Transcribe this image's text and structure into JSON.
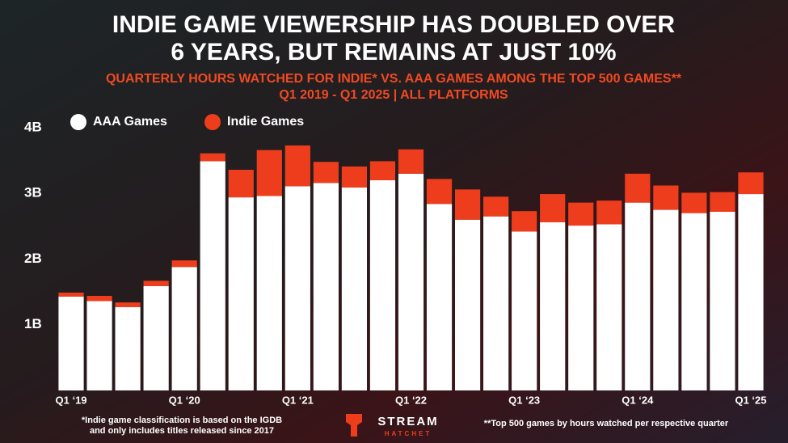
{
  "chart_data": {
    "type": "stacked-bar",
    "title": [
      "INDIE GAME VIEWERSHIP HAS DOUBLED OVER",
      "6 YEARS, BUT REMAINS AT JUST 10%"
    ],
    "subtitle": [
      "QUARTERLY HOURS WATCHED FOR INDIE* VS. AAA GAMES AMONG THE TOP 500 GAMES**",
      "Q1 2019 - Q1 2025 | ALL PLATFORMS"
    ],
    "categories": [
      "Q1 ‘19",
      null,
      null,
      null,
      "Q1 ‘20",
      null,
      null,
      null,
      "Q1 ‘21",
      null,
      null,
      null,
      "Q1 ‘22",
      null,
      null,
      null,
      "Q1 ‘23",
      null,
      null,
      null,
      "Q1 ‘24",
      null,
      null,
      null,
      "Q1 ‘25"
    ],
    "series": [
      {
        "name": "AAA Games",
        "color": "#ffffff",
        "values": [
          1.43,
          1.36,
          1.27,
          1.59,
          1.88,
          3.49,
          2.94,
          2.96,
          3.11,
          3.16,
          3.09,
          3.2,
          3.3,
          2.84,
          2.6,
          2.65,
          2.42,
          2.56,
          2.51,
          2.53,
          2.86,
          2.75,
          2.7,
          2.72,
          2.99
        ]
      },
      {
        "name": "Indie Games",
        "color": "#ee3d1c",
        "values": [
          0.06,
          0.08,
          0.07,
          0.08,
          0.1,
          0.12,
          0.42,
          0.7,
          0.62,
          0.32,
          0.32,
          0.29,
          0.37,
          0.38,
          0.46,
          0.3,
          0.31,
          0.43,
          0.35,
          0.36,
          0.44,
          0.37,
          0.31,
          0.3,
          0.33
        ]
      }
    ],
    "ylim": [
      0,
      4
    ],
    "yticks": [
      {
        "value": 1,
        "label": "1B"
      },
      {
        "value": 2,
        "label": "2B"
      },
      {
        "value": 3,
        "label": "3B"
      },
      {
        "value": 4,
        "label": "4B"
      }
    ],
    "grid": false,
    "notes": [
      "*Indie game classification is based on the IGDB",
      "and only includes titles released since 2017",
      "**Top 500 games by hours watched per respective quarter"
    ],
    "logo": [
      "STREAM",
      "HATCHET"
    ]
  }
}
